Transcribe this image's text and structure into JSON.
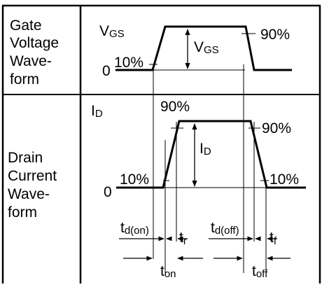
{
  "gate_row": {
    "header": [
      "Gate",
      "Voltage",
      "Wave-",
      "form"
    ],
    "vgs_main": "V",
    "vgs_main_sub": "GS",
    "vgs_arrow": "V",
    "vgs_arrow_sub": "GS",
    "pct_90": "90%",
    "pct_10": "10%",
    "zero": "0"
  },
  "drain_row": {
    "header": [
      "Drain",
      "Current",
      "Wave-",
      "form"
    ],
    "id_main": "I",
    "id_main_sub": "D",
    "id_arrow": "I",
    "id_arrow_sub": "D",
    "pct_90_top": "90%",
    "pct_90_right": "90%",
    "pct_10_left": "10%",
    "pct_10_right": "10%",
    "zero": "0"
  },
  "timing": {
    "td_on": "t",
    "td_on_sub": "d(on)",
    "tr": "t",
    "tr_sub": "r",
    "td_off": "t",
    "td_off_sub": "d(off)",
    "tf": "t",
    "tf_sub": "f",
    "ton": "t",
    "ton_sub": "on",
    "toff": "t",
    "toff_sub": "off"
  }
}
